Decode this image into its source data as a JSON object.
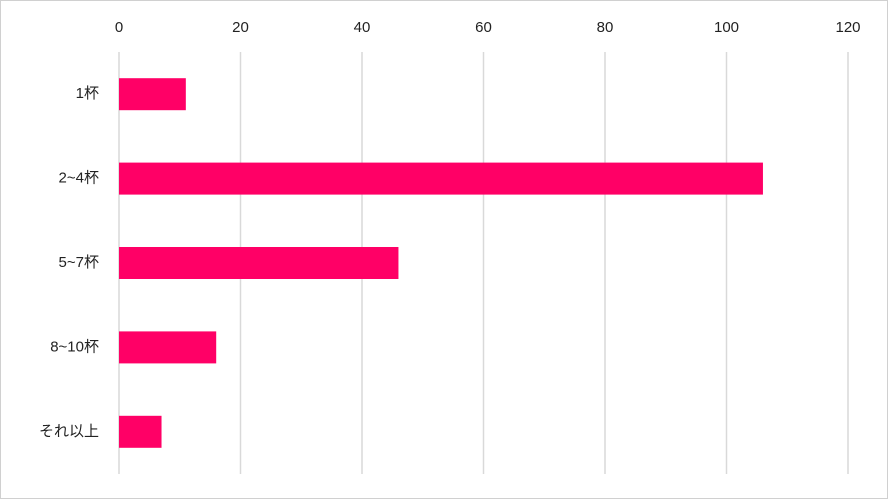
{
  "chart_data": {
    "type": "bar",
    "orientation": "horizontal",
    "categories": [
      "1杯",
      "2~4杯",
      "5~7杯",
      "8~10杯",
      "それ以上"
    ],
    "values": [
      11,
      106,
      46,
      16,
      7
    ],
    "color": "#ff0066",
    "xlim": [
      0,
      120
    ],
    "xticks": [
      0,
      20,
      40,
      60,
      80,
      100,
      120
    ],
    "grid": true
  }
}
